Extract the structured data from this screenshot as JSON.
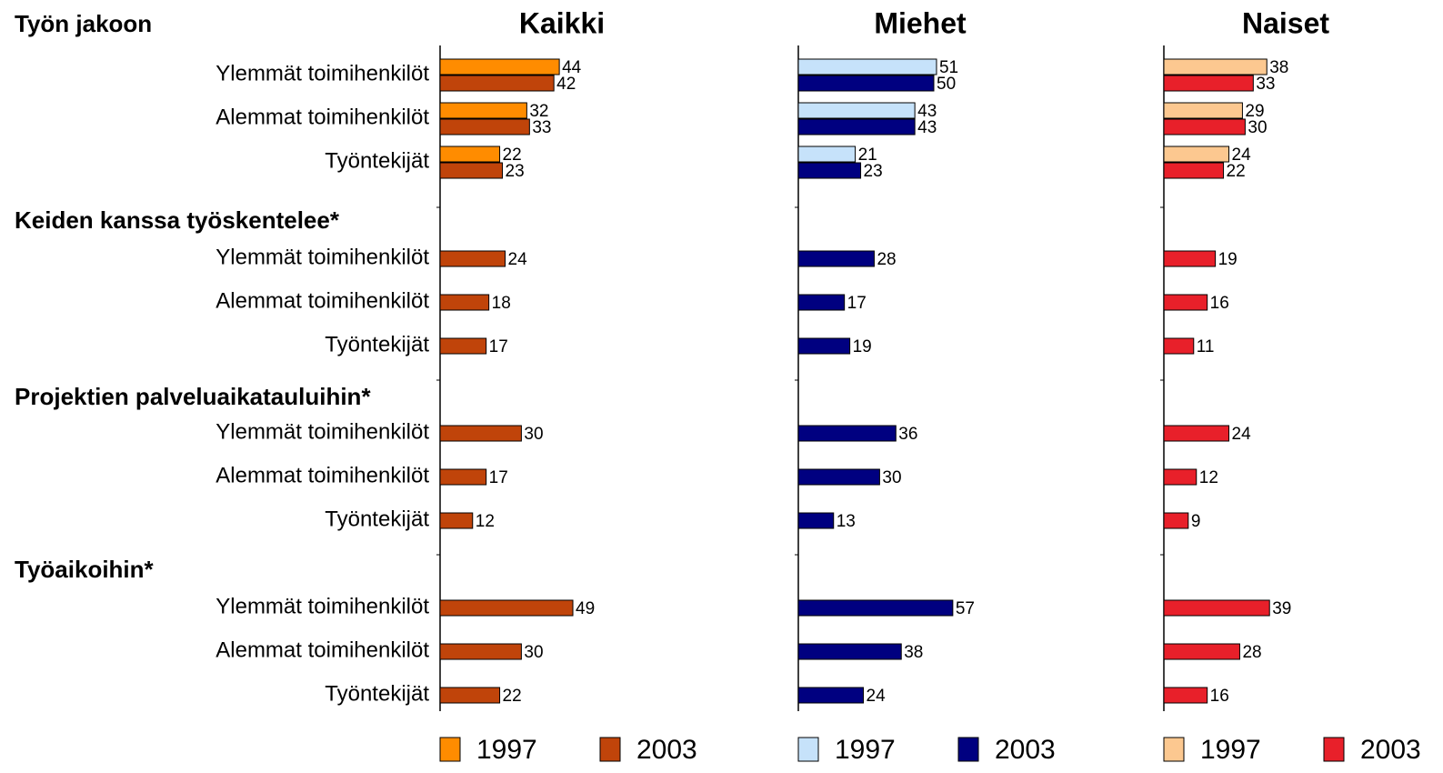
{
  "groups": [
    {
      "title": "Työn jakoon",
      "categories": [
        "Ylemmät toimihenkilöt",
        "Alemmat toimihenkilöt",
        "Työntekijät"
      ]
    },
    {
      "title": "Keiden kanssa työskentelee*",
      "categories": [
        "Ylemmät toimihenkilöt",
        "Alemmat toimihenkilöt",
        "Työntekijät"
      ]
    },
    {
      "title": "Projektien palveluaikatauluihin*",
      "categories": [
        "Ylemmät toimihenkilöt",
        "Alemmat toimihenkilöt",
        "Työntekijät"
      ]
    },
    {
      "title": "Työaikoihin*",
      "categories": [
        "Ylemmät toimihenkilöt",
        "Alemmat toimihenkilöt",
        "Työntekijät"
      ]
    }
  ],
  "chart_data": [
    {
      "type": "bar",
      "orientation": "horizontal",
      "title": "Kaikki",
      "series": [
        {
          "name": "1997",
          "color": "#ff8c00",
          "values": [
            44,
            32,
            22,
            null,
            null,
            null,
            null,
            null,
            null,
            null,
            null,
            null
          ]
        },
        {
          "name": "2003",
          "color": "#c0440a",
          "values": [
            42,
            33,
            23,
            24,
            18,
            17,
            30,
            17,
            12,
            49,
            30,
            22
          ]
        }
      ]
    },
    {
      "type": "bar",
      "orientation": "horizontal",
      "title": "Miehet",
      "series": [
        {
          "name": "1997",
          "color": "#c6e2fa",
          "values": [
            51,
            43,
            21,
            null,
            null,
            null,
            null,
            null,
            null,
            null,
            null,
            null
          ]
        },
        {
          "name": "2003",
          "color": "#000080",
          "values": [
            50,
            43,
            23,
            28,
            17,
            19,
            36,
            30,
            13,
            57,
            38,
            24
          ]
        }
      ]
    },
    {
      "type": "bar",
      "orientation": "horizontal",
      "title": "Naiset",
      "series": [
        {
          "name": "1997",
          "color": "#fcc890",
          "values": [
            38,
            29,
            24,
            null,
            null,
            null,
            null,
            null,
            null,
            null,
            null,
            null
          ]
        },
        {
          "name": "2003",
          "color": "#e8202a",
          "values": [
            33,
            30,
            22,
            19,
            16,
            11,
            24,
            12,
            9,
            39,
            28,
            16
          ]
        }
      ]
    }
  ]
}
